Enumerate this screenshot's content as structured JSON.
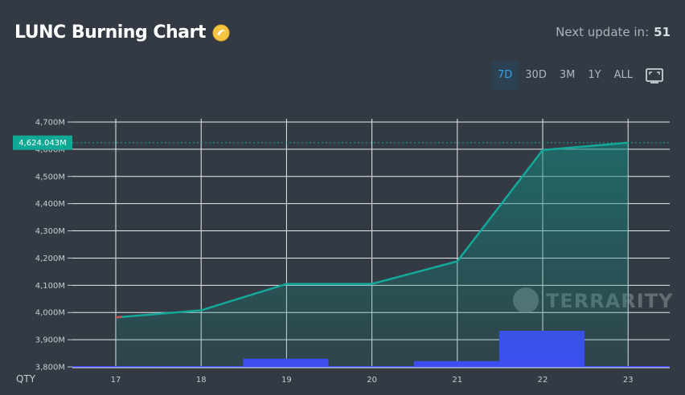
{
  "header": {
    "title": "LUNC Burning Chart",
    "next_update_label": "Next update in:",
    "next_update_value": "51"
  },
  "range_tabs": [
    {
      "label": "7D",
      "active": true
    },
    {
      "label": "30D",
      "active": false
    },
    {
      "label": "3M",
      "active": false
    },
    {
      "label": "1Y",
      "active": false
    },
    {
      "label": "ALL",
      "active": false
    }
  ],
  "icons": {
    "title_icon": "lunc-coin-icon",
    "fullscreen": "fullscreen-icon"
  },
  "watermark": "TERRARITY",
  "colors": {
    "background": "#343a44",
    "line": "#14a89a",
    "volume": "#4245ff",
    "price_tag": "#0ea895",
    "active_tab_text": "#35a4e8"
  },
  "chart_data": {
    "type": "line",
    "categories": [
      "17",
      "18",
      "19",
      "20",
      "21",
      "22",
      "23"
    ],
    "series": [
      {
        "values": [
          3982,
          4008,
          4105,
          4105,
          4188,
          4597,
          4624.043
        ]
      }
    ],
    "volume": {
      "label": "QTY",
      "values": [
        1,
        1,
        11,
        0.5,
        8,
        45,
        1
      ]
    },
    "current_value_label": "4,624.043M",
    "y_ticks": [
      "3,800M",
      "3,900M",
      "4,000M",
      "4,100M",
      "4,200M",
      "4,300M",
      "4,400M",
      "4,500M",
      "4,600M",
      "4,700M"
    ],
    "ylim": [
      3800,
      4700
    ],
    "grid": true
  }
}
